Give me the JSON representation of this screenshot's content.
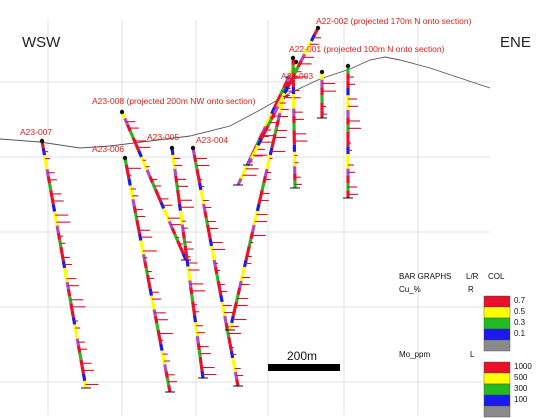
{
  "section": {
    "left_direction": "WSW",
    "right_direction": "ENE",
    "scale_label": "200m"
  },
  "drillholes": [
    {
      "id": "A22-002",
      "label": "A22-002 (projected 170m N onto section)"
    },
    {
      "id": "A22-001",
      "label": "A22-001 (projected 100m N onto section)"
    },
    {
      "id": "A22-003",
      "label": "A22-003"
    },
    {
      "id": "A23-008",
      "label": "A23-008 (projected 200m  NW onto section)"
    },
    {
      "id": "A23-007",
      "label": "A23-007"
    },
    {
      "id": "A23-006",
      "label": "A23-006"
    },
    {
      "id": "A23-005",
      "label": "A23-005"
    },
    {
      "id": "A23-004",
      "label": "A23-004"
    }
  ],
  "legend": {
    "header": "BAR GRAPHS",
    "header_lr": "L/R",
    "header_col": "COL",
    "series": [
      {
        "name": "Cu_%",
        "side": "R",
        "bins": [
          {
            "color": "#e8102a",
            "value": "0.7"
          },
          {
            "color": "#ffff00",
            "value": "0.5"
          },
          {
            "color": "#22bb22",
            "value": "0.3"
          },
          {
            "color": "#1a1aee",
            "value": "0.1"
          },
          {
            "color": "#8a8a8a",
            "value": ""
          }
        ]
      },
      {
        "name": "Mo_ppm",
        "side": "L",
        "bins": [
          {
            "color": "#e8102a",
            "value": "1000"
          },
          {
            "color": "#ffff00",
            "value": "500"
          },
          {
            "color": "#22bb22",
            "value": "300"
          },
          {
            "color": "#1a1aee",
            "value": "100"
          },
          {
            "color": "#8a8a8a",
            "value": ""
          }
        ]
      }
    ]
  }
}
